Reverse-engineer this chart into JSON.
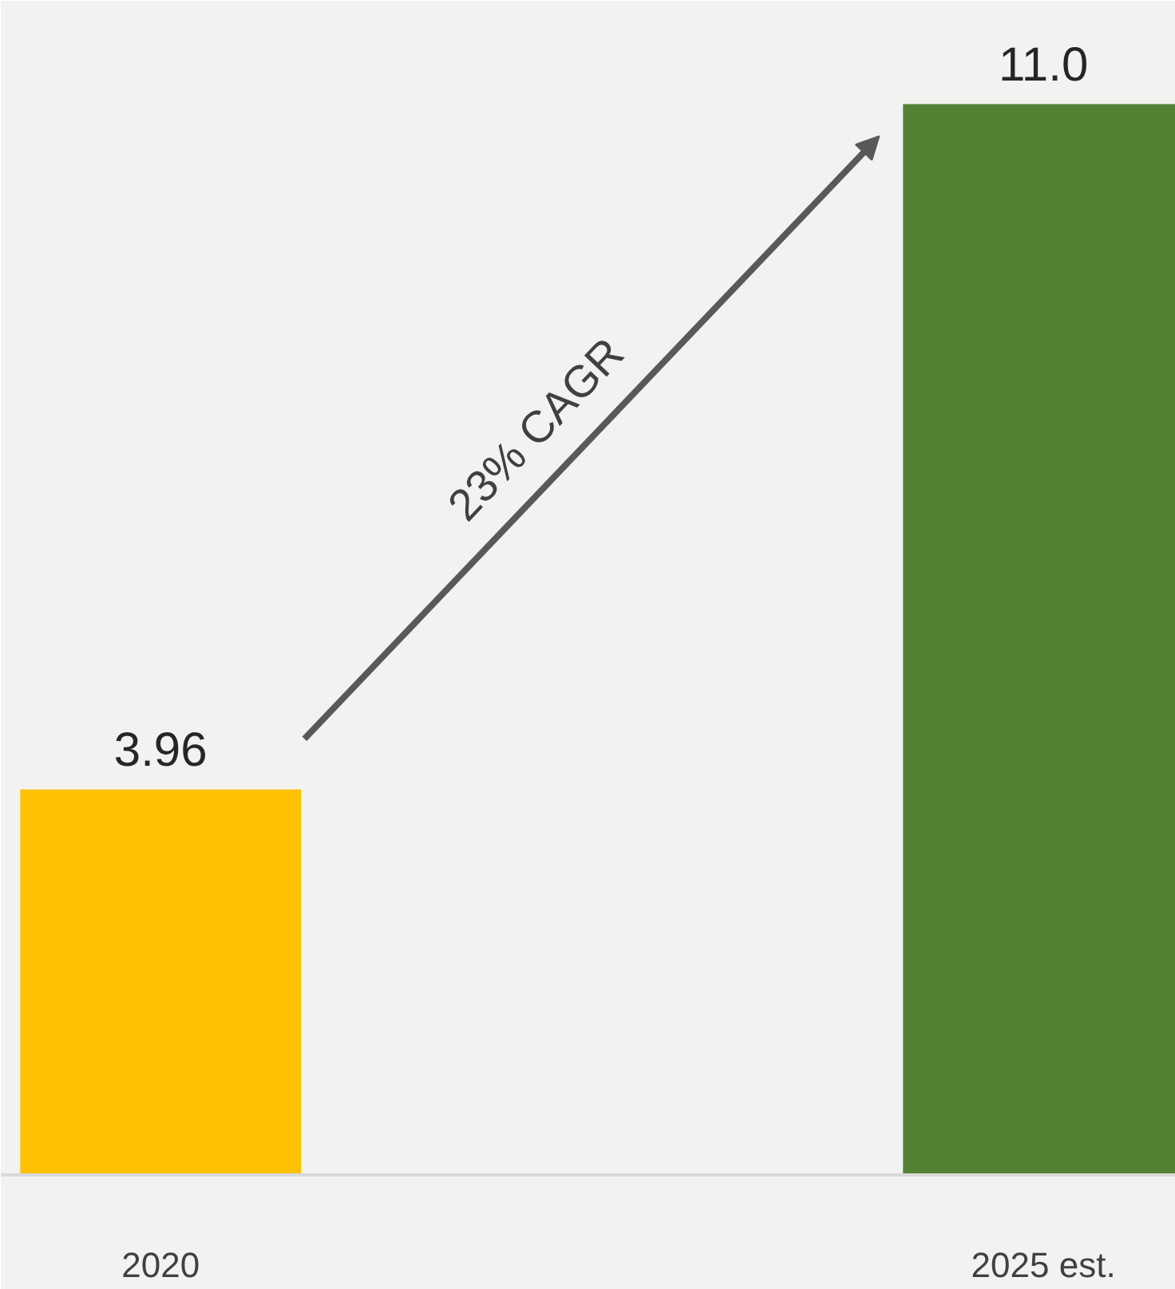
{
  "chart_data": {
    "type": "bar",
    "categories": [
      "2020",
      "2025 est."
    ],
    "values": [
      3.96,
      11.0
    ],
    "colors": [
      "#ffc000",
      "#548235"
    ],
    "value_labels": [
      "3.96",
      "11.0"
    ],
    "annotations": [
      "23% CAGR"
    ]
  }
}
